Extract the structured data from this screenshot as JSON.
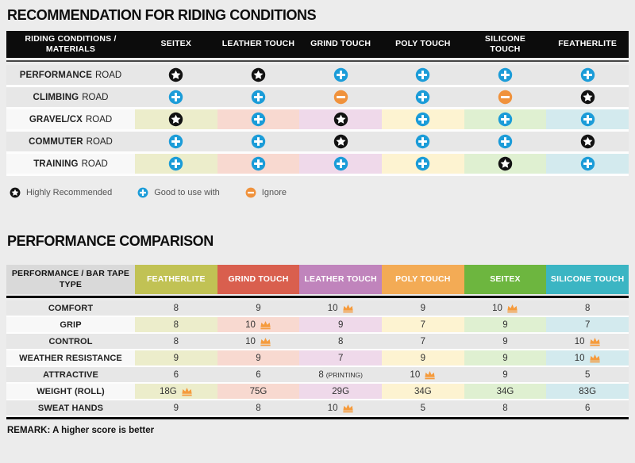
{
  "chart_data": [
    {
      "type": "table",
      "title": "RECOMMENDATION FOR RIDING CONDITIONS",
      "header": [
        "RIDING CONDITIONS / MATERIALS",
        "SEITEX",
        "LEATHER TOUCH",
        "GRIND TOUCH",
        "POLY TOUCH",
        "SILICONE TOUCH",
        "FEATHERLITE"
      ],
      "column_tints": [
        "#ecedcb",
        "#f8d9d0",
        "#efd9ea",
        "#fdf3d1",
        "#dff0d1",
        "#d3eaee"
      ],
      "rows": [
        {
          "label_bold": "PERFORMANCE",
          "label_rest": "ROAD",
          "tinted": false,
          "ratings": [
            "star",
            "star",
            "plus",
            "plus",
            "plus",
            "plus"
          ]
        },
        {
          "label_bold": "CLIMBING",
          "label_rest": "ROAD",
          "tinted": false,
          "ratings": [
            "plus",
            "plus",
            "minus",
            "plus",
            "minus",
            "star"
          ]
        },
        {
          "label_bold": "GRAVEL/CX",
          "label_rest": "ROAD",
          "tinted": true,
          "ratings": [
            "star",
            "plus",
            "star",
            "plus",
            "plus",
            "plus"
          ]
        },
        {
          "label_bold": "COMMUTER",
          "label_rest": "ROAD",
          "tinted": false,
          "ratings": [
            "plus",
            "plus",
            "star",
            "plus",
            "plus",
            "star"
          ]
        },
        {
          "label_bold": "TRAINING",
          "label_rest": "ROAD",
          "tinted": true,
          "ratings": [
            "plus",
            "plus",
            "plus",
            "plus",
            "star",
            "plus"
          ]
        }
      ],
      "legend": [
        {
          "icon": "star",
          "label": "Highly Recommended"
        },
        {
          "icon": "plus",
          "label": "Good to use with"
        },
        {
          "icon": "minus",
          "label": "Ignore"
        }
      ]
    },
    {
      "type": "table",
      "title": "PERFORMANCE COMPARISON",
      "header_label": "PERFORMANCE / BAR TAPE TYPE",
      "columns": [
        {
          "label": "FEATHERLITE",
          "color": "#c1c254",
          "tint": "#ecedcb"
        },
        {
          "label": "GRIND TOUCH",
          "color": "#d95f4e",
          "tint": "#f8d9d0"
        },
        {
          "label": "LEATHER TOUCH",
          "color": "#c084bc",
          "tint": "#efd9ea"
        },
        {
          "label": "POLY TOUCH",
          "color": "#f3ab55",
          "tint": "#fdf3d1"
        },
        {
          "label": "SEITEX",
          "color": "#6db63f",
          "tint": "#dff0d1"
        },
        {
          "label": "SILICONE TOUCH",
          "color": "#3bb5c3",
          "tint": "#d3eaee"
        }
      ],
      "rows": [
        {
          "label": "COMFORT",
          "tinted": false,
          "cells": [
            {
              "v": "8"
            },
            {
              "v": "9"
            },
            {
              "v": "10",
              "crown": true
            },
            {
              "v": "9"
            },
            {
              "v": "10",
              "crown": true
            },
            {
              "v": "8"
            }
          ]
        },
        {
          "label": "GRIP",
          "tinted": true,
          "cells": [
            {
              "v": "8"
            },
            {
              "v": "10",
              "crown": true
            },
            {
              "v": "9"
            },
            {
              "v": "7"
            },
            {
              "v": "9"
            },
            {
              "v": "7"
            }
          ]
        },
        {
          "label": "CONTROL",
          "tinted": false,
          "cells": [
            {
              "v": "8"
            },
            {
              "v": "10",
              "crown": true
            },
            {
              "v": "8"
            },
            {
              "v": "7"
            },
            {
              "v": "9"
            },
            {
              "v": "10",
              "crown": true
            }
          ]
        },
        {
          "label": "WEATHER RESISTANCE",
          "tinted": true,
          "cells": [
            {
              "v": "9"
            },
            {
              "v": "9"
            },
            {
              "v": "7"
            },
            {
              "v": "9"
            },
            {
              "v": "9"
            },
            {
              "v": "10",
              "crown": true
            }
          ]
        },
        {
          "label": "ATTRACTIVE",
          "tinted": false,
          "cells": [
            {
              "v": "6"
            },
            {
              "v": "6"
            },
            {
              "v": "8",
              "note": "(PRINTING)"
            },
            {
              "v": "10",
              "crown": true
            },
            {
              "v": "9"
            },
            {
              "v": "5"
            }
          ]
        },
        {
          "label": "WEIGHT (ROLL)",
          "tinted": true,
          "cells": [
            {
              "v": "18G",
              "crown": true
            },
            {
              "v": "75G"
            },
            {
              "v": "29G"
            },
            {
              "v": "34G"
            },
            {
              "v": "34G"
            },
            {
              "v": "83G"
            }
          ]
        },
        {
          "label": "SWEAT HANDS",
          "tinted": false,
          "cells": [
            {
              "v": "9"
            },
            {
              "v": "8"
            },
            {
              "v": "10",
              "crown": true
            },
            {
              "v": "5"
            },
            {
              "v": "8"
            },
            {
              "v": "6"
            }
          ]
        }
      ],
      "remark": "REMARK: A higher score is better"
    }
  ],
  "icon_colors": {
    "star": "#121212",
    "plus": "#1b9cd8",
    "minus": "#f0923c",
    "crown": "#f59b3d"
  },
  "row_colors": {
    "gray_row": "#e7e7e7",
    "white_label": "#f8f8f8"
  }
}
